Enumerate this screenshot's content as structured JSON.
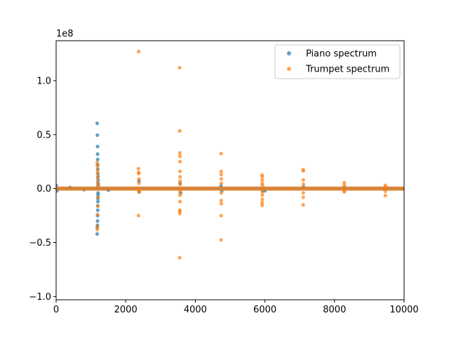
{
  "chart_data": {
    "type": "scatter",
    "title": "",
    "xlabel": "",
    "ylabel": "",
    "xlim": [
      0,
      10000
    ],
    "ylim": [
      -103000000,
      137000000
    ],
    "y_offset_text": "1e8",
    "x_ticks": [
      0,
      2000,
      4000,
      6000,
      8000,
      10000
    ],
    "x_tick_labels": [
      "0",
      "2000",
      "4000",
      "6000",
      "8000",
      "10000"
    ],
    "y_ticks": [
      -100000000,
      -50000000,
      0,
      50000000,
      100000000
    ],
    "y_tick_labels": [
      "−1.0",
      "−0.5",
      "0.0",
      "0.5",
      "1.0"
    ],
    "grid": false,
    "legend_position": "top-right",
    "series": [
      {
        "name": "Piano spectrum",
        "color": "#1f77b4",
        "baseline_x": [
          0,
          10000
        ],
        "points": [
          [
            0,
            3000000
          ],
          [
            30,
            -2000000
          ],
          [
            400,
            1000000
          ],
          [
            800,
            -1000000
          ],
          [
            1180,
            60500000
          ],
          [
            1185,
            49500000
          ],
          [
            1190,
            39000000
          ],
          [
            1192,
            32000000
          ],
          [
            1195,
            27000000
          ],
          [
            1197,
            22000000
          ],
          [
            1200,
            18000000
          ],
          [
            1202,
            14000000
          ],
          [
            1204,
            11000000
          ],
          [
            1206,
            8000000
          ],
          [
            1208,
            5000000
          ],
          [
            1210,
            3000000
          ],
          [
            1180,
            -42000000
          ],
          [
            1185,
            -36000000
          ],
          [
            1188,
            -34000000
          ],
          [
            1190,
            -30000000
          ],
          [
            1192,
            -25000000
          ],
          [
            1195,
            -20000000
          ],
          [
            1197,
            -16000000
          ],
          [
            1200,
            -12000000
          ],
          [
            1202,
            -9000000
          ],
          [
            1204,
            -6000000
          ],
          [
            1206,
            -4000000
          ],
          [
            1500,
            -1500000
          ],
          [
            2380,
            7000000
          ],
          [
            2390,
            -3000000
          ],
          [
            3560,
            5000000
          ],
          [
            3580,
            -4000000
          ],
          [
            4740,
            2500000
          ],
          [
            4760,
            -2000000
          ],
          [
            5940,
            -2000000
          ],
          [
            6000,
            -2000000
          ],
          [
            7110,
            1500000
          ],
          [
            8290,
            1000000
          ],
          [
            9480,
            800000
          ]
        ]
      },
      {
        "name": "Trumpet spectrum",
        "color": "#ff7f0e",
        "baseline_x": [
          0,
          10000
        ],
        "points": [
          [
            1180,
            24000000
          ],
          [
            1185,
            21000000
          ],
          [
            1190,
            17000000
          ],
          [
            1192,
            14000000
          ],
          [
            1195,
            10000000
          ],
          [
            1198,
            6000000
          ],
          [
            1200,
            3000000
          ],
          [
            1180,
            -38000000
          ],
          [
            1185,
            -35000000
          ],
          [
            1190,
            -24000000
          ],
          [
            1195,
            -16000000
          ],
          [
            1200,
            -8000000
          ],
          [
            2370,
            127000000
          ],
          [
            2365,
            18500000
          ],
          [
            2372,
            15000000
          ],
          [
            2375,
            14000000
          ],
          [
            2378,
            9000000
          ],
          [
            2380,
            5000000
          ],
          [
            2368,
            -25000000
          ],
          [
            2376,
            -3000000
          ],
          [
            2382,
            -2000000
          ],
          [
            3550,
            112000000
          ],
          [
            3552,
            53500000
          ],
          [
            3554,
            33000000
          ],
          [
            3556,
            30000000
          ],
          [
            3558,
            25000000
          ],
          [
            3560,
            16000000
          ],
          [
            3562,
            11000000
          ],
          [
            3564,
            7000000
          ],
          [
            3566,
            4000000
          ],
          [
            3550,
            -64000000
          ],
          [
            3552,
            -21000000
          ],
          [
            3554,
            -20000000
          ],
          [
            3556,
            -23000000
          ],
          [
            3558,
            -12000000
          ],
          [
            3560,
            -6000000
          ],
          [
            3562,
            -3000000
          ],
          [
            4740,
            32500000
          ],
          [
            4742,
            16000000
          ],
          [
            4744,
            13000000
          ],
          [
            4746,
            9000000
          ],
          [
            4748,
            5000000
          ],
          [
            4740,
            -47500000
          ],
          [
            4742,
            -25000000
          ],
          [
            4744,
            -11000000
          ],
          [
            4746,
            -14000000
          ],
          [
            4748,
            -4000000
          ],
          [
            5920,
            12500000
          ],
          [
            5922,
            11000000
          ],
          [
            5924,
            8000000
          ],
          [
            5926,
            5000000
          ],
          [
            5928,
            3000000
          ],
          [
            5920,
            -15500000
          ],
          [
            5922,
            -13000000
          ],
          [
            5924,
            -10000000
          ],
          [
            5926,
            -6000000
          ],
          [
            5928,
            -3000000
          ],
          [
            7100,
            17500000
          ],
          [
            7102,
            16500000
          ],
          [
            7104,
            8000000
          ],
          [
            7106,
            4000000
          ],
          [
            7100,
            -15000000
          ],
          [
            7102,
            -8000000
          ],
          [
            7104,
            -4000000
          ],
          [
            8280,
            5500000
          ],
          [
            8282,
            3000000
          ],
          [
            8280,
            -3000000
          ],
          [
            8282,
            -2000000
          ],
          [
            9460,
            3000000
          ],
          [
            9462,
            1500000
          ],
          [
            9460,
            -6500000
          ],
          [
            9462,
            -2500000
          ]
        ]
      }
    ]
  }
}
